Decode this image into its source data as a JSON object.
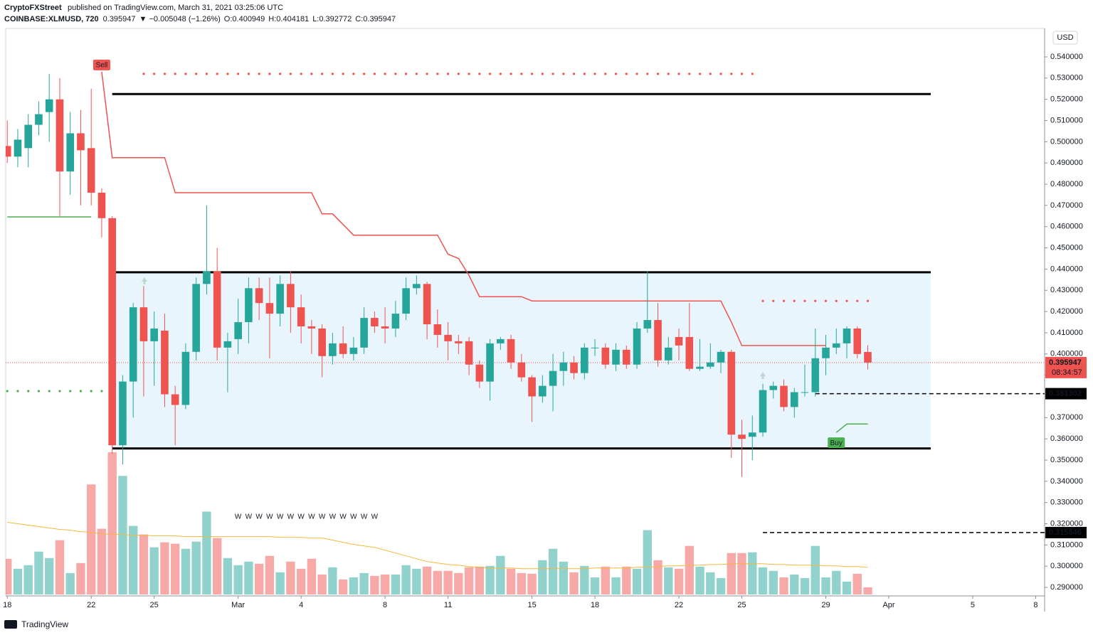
{
  "header": {
    "author": "CryptoFXStreet",
    "published": "published on TradingView.com, March 31, 2021 03:25:06 UTC"
  },
  "chart_data": {
    "type": "candlestick",
    "symbol": "COINBASE:XLMUSD, 720",
    "last": "0.395947",
    "change": "▼ −0.005048 (−1.26%)",
    "ohlc_labels": [
      {
        "key": "O:",
        "value": "0.400949"
      },
      {
        "key": "H:",
        "value": "0.404181"
      },
      {
        "key": "L:",
        "value": "0.392772"
      },
      {
        "key": "C:",
        "value": "0.395947"
      }
    ],
    "currency": "USD",
    "up_color": "#26a69a",
    "down_color": "#ef5350",
    "open": [
      0.498,
      0.493,
      0.497,
      0.508,
      0.514,
      0.52,
      0.486,
      0.504,
      0.497,
      0.476,
      0.464,
      0.357,
      0.387,
      0.422,
      0.406,
      0.411,
      0.381,
      0.376,
      0.401,
      0.433,
      0.439,
      0.403,
      0.407,
      0.415,
      0.431,
      0.424,
      0.419,
      0.433,
      0.422,
      0.413,
      0.412,
      0.399,
      0.405,
      0.4,
      0.403,
      0.417,
      0.413,
      0.412,
      0.419,
      0.431,
      0.433,
      0.414,
      0.409,
      0.406,
      0.406,
      0.395,
      0.387,
      0.405,
      0.407,
      0.396,
      0.389,
      0.38,
      0.385,
      0.392,
      0.396,
      0.391,
      0.403,
      0.403,
      0.395,
      0.402,
      0.395,
      0.412,
      0.416,
      0.397,
      0.408,
      0.408,
      0.393,
      0.394,
      0.396,
      0.401,
      0.362,
      0.361,
      0.363,
      0.383,
      0.385,
      0.375,
      0.382,
      0.382,
      0.398,
      0.403,
      0.405,
      0.412,
      0.400949
    ],
    "high": [
      0.51,
      0.506,
      0.513,
      0.519,
      0.532,
      0.53,
      0.514,
      0.515,
      0.525,
      0.478,
      0.465,
      0.39,
      0.424,
      0.432,
      0.42,
      0.419,
      0.385,
      0.405,
      0.436,
      0.47,
      0.45,
      0.41,
      0.426,
      0.436,
      0.436,
      0.436,
      0.437,
      0.439,
      0.428,
      0.416,
      0.414,
      0.41,
      0.413,
      0.408,
      0.422,
      0.42,
      0.422,
      0.425,
      0.436,
      0.437,
      0.434,
      0.421,
      0.415,
      0.409,
      0.408,
      0.397,
      0.407,
      0.408,
      0.409,
      0.4,
      0.39,
      0.39,
      0.4,
      0.401,
      0.399,
      0.405,
      0.407,
      0.405,
      0.405,
      0.404,
      0.415,
      0.439,
      0.424,
      0.408,
      0.412,
      0.424,
      0.407,
      0.405,
      0.402,
      0.402,
      0.369,
      0.371,
      0.386,
      0.387,
      0.388,
      0.384,
      0.395,
      0.412,
      0.409,
      0.412,
      0.413,
      0.413,
      0.404181
    ],
    "low": [
      0.49,
      0.488,
      0.488,
      0.503,
      0.5,
      0.465,
      0.475,
      0.47,
      0.47,
      0.455,
      0.353,
      0.348,
      0.37,
      0.38,
      0.385,
      0.375,
      0.357,
      0.374,
      0.397,
      0.428,
      0.397,
      0.382,
      0.4,
      0.405,
      0.416,
      0.398,
      0.413,
      0.41,
      0.405,
      0.4,
      0.389,
      0.395,
      0.398,
      0.397,
      0.4,
      0.41,
      0.405,
      0.408,
      0.416,
      0.428,
      0.407,
      0.403,
      0.397,
      0.4,
      0.39,
      0.384,
      0.378,
      0.402,
      0.393,
      0.387,
      0.368,
      0.377,
      0.373,
      0.385,
      0.388,
      0.388,
      0.399,
      0.393,
      0.392,
      0.393,
      0.393,
      0.41,
      0.394,
      0.395,
      0.397,
      0.392,
      0.392,
      0.393,
      0.391,
      0.351,
      0.342,
      0.35,
      0.361,
      0.379,
      0.373,
      0.37,
      0.38,
      0.38,
      0.39,
      0.4,
      0.398,
      0.398,
      0.392772
    ],
    "close": [
      0.493,
      0.501,
      0.508,
      0.513,
      0.52,
      0.486,
      0.504,
      0.496,
      0.476,
      0.464,
      0.357,
      0.387,
      0.422,
      0.406,
      0.412,
      0.381,
      0.376,
      0.401,
      0.433,
      0.439,
      0.403,
      0.406,
      0.415,
      0.431,
      0.424,
      0.419,
      0.433,
      0.422,
      0.413,
      0.412,
      0.399,
      0.405,
      0.4,
      0.403,
      0.417,
      0.413,
      0.412,
      0.419,
      0.431,
      0.433,
      0.414,
      0.409,
      0.406,
      0.405,
      0.395,
      0.387,
      0.405,
      0.407,
      0.396,
      0.389,
      0.38,
      0.385,
      0.392,
      0.396,
      0.391,
      0.403,
      0.403,
      0.395,
      0.402,
      0.395,
      0.412,
      0.416,
      0.397,
      0.403,
      0.404,
      0.393,
      0.394,
      0.396,
      0.401,
      0.362,
      0.36,
      0.363,
      0.383,
      0.385,
      0.375,
      0.382,
      0.382,
      0.398,
      0.403,
      0.405,
      0.412,
      0.4,
      0.395947
    ],
    "volume": [
      50,
      36,
      41,
      60,
      51,
      76,
      30,
      44,
      154,
      92,
      199,
      166,
      96,
      84,
      66,
      73,
      71,
      64,
      74,
      116,
      79,
      51,
      41,
      46,
      43,
      54,
      31,
      46,
      36,
      50,
      28,
      38,
      21,
      24,
      30,
      26,
      28,
      28,
      41,
      36,
      39,
      33,
      33,
      30,
      38,
      39,
      40,
      54,
      36,
      30,
      29,
      48,
      64,
      46,
      31,
      40,
      24,
      39,
      24,
      39,
      36,
      90,
      48,
      38,
      36,
      68,
      39,
      31,
      23,
      58,
      58,
      59,
      38,
      33,
      24,
      28,
      23,
      68,
      24,
      33,
      18,
      29,
      10
    ],
    "volume_ma": {
      "color": "#f5b83d",
      "values": [
        101,
        99,
        97,
        95,
        93,
        91,
        90,
        88,
        87,
        85,
        84,
        84,
        83,
        83,
        82,
        82,
        82,
        81,
        81,
        81,
        81,
        81,
        81,
        81,
        81,
        81,
        80,
        80,
        80,
        79,
        79,
        76,
        73,
        70,
        68,
        66,
        62,
        58,
        54,
        50,
        46,
        44,
        42,
        41,
        39,
        38,
        37,
        37,
        37,
        36,
        36,
        36,
        36,
        36,
        36,
        36,
        37,
        37,
        37,
        37,
        38,
        38,
        39,
        40,
        40,
        41,
        41,
        42,
        42,
        43,
        43,
        43,
        43,
        42,
        42,
        41,
        41,
        41,
        40,
        40,
        39,
        39,
        38
      ]
    },
    "overlays": [
      {
        "color": "#ef5350",
        "values": [
          null,
          null,
          null,
          null,
          null,
          null,
          null,
          null,
          null,
          0.533,
          0.4925,
          0.4925,
          0.4925,
          0.4925,
          0.4925,
          0.4925,
          0.476,
          0.476,
          0.476,
          0.476,
          0.476,
          0.476,
          0.476,
          0.476,
          0.476,
          0.476,
          0.476,
          0.476,
          0.476,
          0.476,
          0.466,
          0.466,
          0.461,
          0.456,
          0.456,
          0.456,
          0.456,
          0.456,
          0.456,
          0.456,
          0.456,
          0.456,
          0.447,
          0.445,
          0.437,
          0.427,
          0.427,
          0.427,
          0.427,
          0.427,
          0.425,
          0.425,
          0.425,
          0.425,
          0.425,
          0.425,
          0.425,
          0.425,
          0.425,
          0.425,
          0.425,
          0.425,
          0.425,
          0.425,
          0.425,
          0.425,
          0.425,
          0.425,
          0.425,
          0.415,
          0.404,
          0.404,
          0.404,
          0.404,
          0.404,
          0.404,
          0.404,
          0.404,
          0.404,
          null,
          null,
          null,
          null
        ]
      },
      {
        "color": "#4caf50",
        "values": [
          0.4646,
          0.4646,
          0.4646,
          0.4646,
          0.4646,
          0.4646,
          0.4646,
          0.4646,
          0.4646,
          null,
          null,
          null,
          null,
          null,
          null,
          null,
          null,
          null,
          null,
          null,
          null,
          null,
          null,
          null,
          null,
          null,
          null,
          null,
          null,
          null,
          null,
          null,
          null,
          null,
          null,
          null,
          null,
          null,
          null,
          null,
          null,
          null,
          null,
          null,
          null,
          null,
          null,
          null,
          null,
          null,
          null,
          null,
          null,
          null,
          null,
          null,
          null,
          null,
          null,
          null,
          null,
          null,
          null,
          null,
          null,
          null,
          null,
          null,
          null,
          null,
          null,
          null,
          null,
          null,
          null,
          null,
          null,
          null,
          null,
          0.363,
          0.367,
          0.367,
          0.367
        ]
      }
    ],
    "dots": [
      {
        "color": "#ef5350",
        "value": 0.532,
        "from": 13,
        "to": 71
      },
      {
        "color": "#4caf50",
        "value": 0.3825,
        "from": 0,
        "to": 9
      },
      {
        "color": "#ef5350",
        "value": 0.425,
        "from": 72,
        "to": 82
      }
    ],
    "levels": [
      {
        "value": 0.5225,
        "from": 10,
        "to": 88
      },
      {
        "value": 0.4385,
        "from": 10,
        "to": 88
      },
      {
        "value": 0.3555,
        "from": 10,
        "to": 88
      }
    ],
    "zone": {
      "color": "#e3f2fd",
      "low": 0.3555,
      "high": 0.4385,
      "from": 10,
      "to": 88
    },
    "dashed_levels": [
      {
        "value": 0.381302,
        "from": 77
      },
      {
        "value": 0.315846,
        "from": 72
      }
    ],
    "current_price": {
      "value": 0.395947,
      "countdown": "08:34:57"
    },
    "signals": [
      {
        "label": "Sell",
        "index": 9,
        "value": 0.536,
        "color": "#ef5350"
      },
      {
        "label": "Buy",
        "index": 79,
        "value": 0.358,
        "color": "#4caf50"
      }
    ],
    "pattern": {
      "label": "W",
      "from": 22,
      "to": 35,
      "value": 0.3232,
      "color": "#ef5350"
    },
    "xlim": [
      -0.15,
      98.85
    ],
    "ylim": [
      0.286,
      0.5534
    ],
    "xticks": [
      {
        "value": 0,
        "label": "18"
      },
      {
        "value": 8,
        "label": "22"
      },
      {
        "value": 14,
        "label": "25"
      },
      {
        "value": 22,
        "label": "Mar"
      },
      {
        "value": 28,
        "label": "4"
      },
      {
        "value": 36,
        "label": "8"
      },
      {
        "value": 42,
        "label": "11"
      },
      {
        "value": 50,
        "label": "15"
      },
      {
        "value": 56,
        "label": "18"
      },
      {
        "value": 64,
        "label": "22"
      },
      {
        "value": 70,
        "label": "25"
      },
      {
        "value": 78,
        "label": "29"
      },
      {
        "value": 84,
        "label": "Apr"
      },
      {
        "value": 92,
        "label": "5"
      },
      {
        "value": 98,
        "label": "8"
      }
    ],
    "yticks": [
      {
        "value": 0.29,
        "label": "0.290000"
      },
      {
        "value": 0.3,
        "label": "0.300000"
      },
      {
        "value": 0.31,
        "label": "0.310000"
      },
      {
        "value": 0.32,
        "label": "0.320000"
      },
      {
        "value": 0.33,
        "label": "0.330000"
      },
      {
        "value": 0.34,
        "label": "0.340000"
      },
      {
        "value": 0.35,
        "label": "0.350000"
      },
      {
        "value": 0.36,
        "label": "0.360000"
      },
      {
        "value": 0.37,
        "label": "0.370000"
      },
      {
        "value": 0.38,
        "label": "0.380000"
      },
      {
        "value": 0.39,
        "label": "0.390000"
      },
      {
        "value": 0.4,
        "label": "0.400000"
      },
      {
        "value": 0.41,
        "label": "0.410000"
      },
      {
        "value": 0.42,
        "label": "0.420000"
      },
      {
        "value": 0.43,
        "label": "0.430000"
      },
      {
        "value": 0.44,
        "label": "0.440000"
      },
      {
        "value": 0.45,
        "label": "0.450000"
      },
      {
        "value": 0.46,
        "label": "0.460000"
      },
      {
        "value": 0.47,
        "label": "0.470000"
      },
      {
        "value": 0.48,
        "label": "0.480000"
      },
      {
        "value": 0.49,
        "label": "0.490000"
      },
      {
        "value": 0.5,
        "label": "0.500000"
      },
      {
        "value": 0.51,
        "label": "0.510000"
      },
      {
        "value": 0.52,
        "label": "0.520000"
      },
      {
        "value": 0.53,
        "label": "0.530000"
      },
      {
        "value": 0.54,
        "label": "0.540000"
      }
    ]
  },
  "footer": {
    "brand": "TradingView"
  }
}
